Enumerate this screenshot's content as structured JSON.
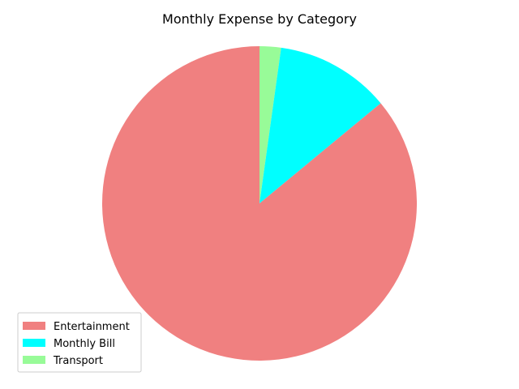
{
  "chart_data": {
    "type": "pie",
    "title": "Monthly Expense by Category",
    "start_angle_deg": 90,
    "direction": "clockwise",
    "slices": [
      {
        "label": "Transport",
        "value": 2.2,
        "color": "#98fb98"
      },
      {
        "label": "Monthly Bill",
        "value": 11.8,
        "color": "#00ffff"
      },
      {
        "label": "Entertainment",
        "value": 86.0,
        "color": "#f08080"
      }
    ],
    "legend": {
      "placement": "lower-left",
      "entries": [
        {
          "label": "Entertainment",
          "color": "#f08080"
        },
        {
          "label": "Monthly Bill",
          "color": "#00ffff"
        },
        {
          "label": "Transport",
          "color": "#98fb98"
        }
      ]
    }
  }
}
